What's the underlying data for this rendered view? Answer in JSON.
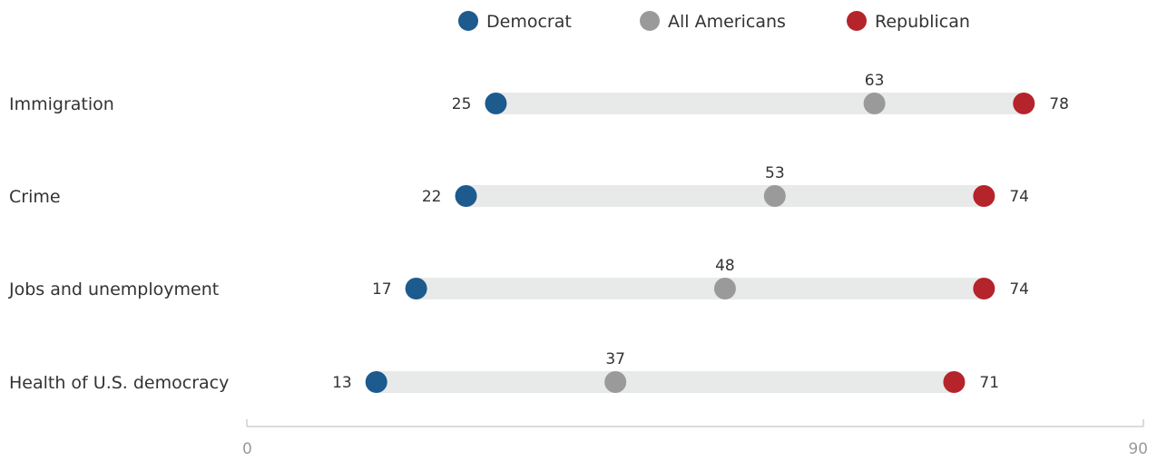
{
  "chart_data": {
    "type": "dot",
    "categories": [
      "Immigration",
      "Crime",
      "Jobs and unemployment",
      "Health of U.S. democracy"
    ],
    "series": [
      {
        "name": "Democrat",
        "key": "dem",
        "color": "#1d5a8e",
        "values": [
          25,
          22,
          17,
          13
        ]
      },
      {
        "name": "All Americans",
        "key": "all",
        "color": "#9a9a9a",
        "values": [
          63,
          53,
          48,
          37
        ]
      },
      {
        "name": "Republican",
        "key": "rep",
        "color": "#b5242a",
        "values": [
          78,
          74,
          74,
          71
        ]
      }
    ],
    "xlim": [
      0,
      90
    ],
    "x_ticks": [
      0,
      90
    ],
    "legend_position": "top-center",
    "grid": false
  }
}
